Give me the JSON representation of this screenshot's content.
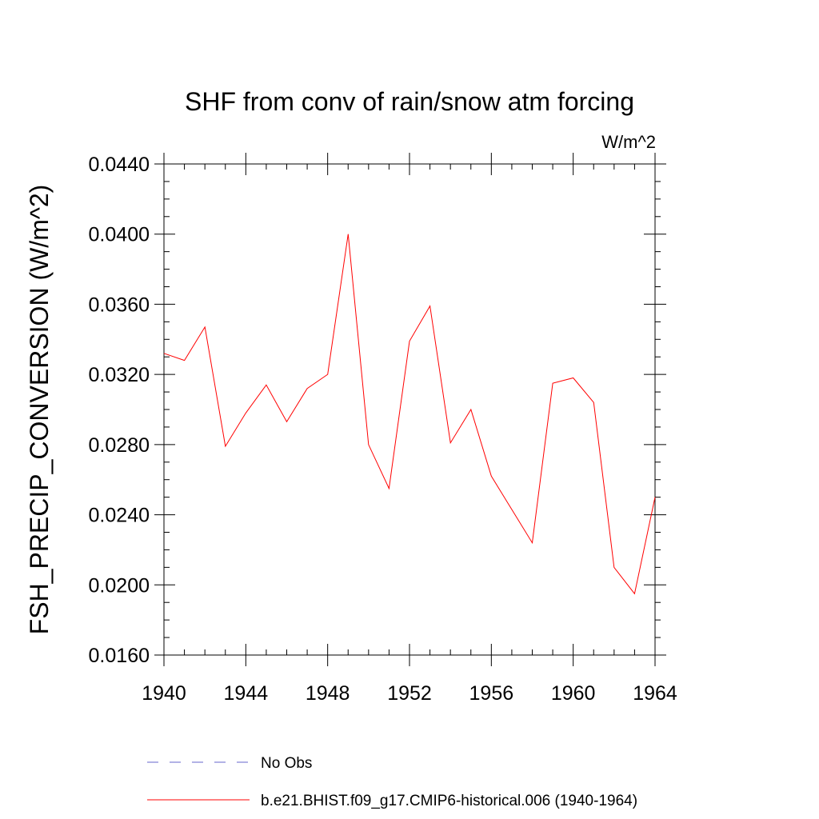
{
  "chart_data": {
    "type": "line",
    "title": "SHF from conv of rain/snow atm forcing",
    "units_label": "W/m^2",
    "ylabel": "FSH_PRECIP_CONVERSION  (W/m^2)",
    "xlabel": "",
    "xlim": [
      1940,
      1964
    ],
    "ylim": [
      0.016,
      0.044
    ],
    "x_ticks": [
      1940,
      1944,
      1948,
      1952,
      1956,
      1960,
      1964
    ],
    "x_tick_labels": [
      "1940",
      "1944",
      "1948",
      "1952",
      "1956",
      "1960",
      "1964"
    ],
    "y_ticks": [
      0.016,
      0.02,
      0.024,
      0.028,
      0.032,
      0.036,
      0.04,
      0.044
    ],
    "y_tick_labels": [
      "0.0160",
      "0.0200",
      "0.0240",
      "0.0280",
      "0.0320",
      "0.0360",
      "0.0400",
      "0.0440"
    ],
    "grid": false,
    "legend_position": "bottom",
    "series": [
      {
        "name": "b.e21.BHIST.f09_g17.CMIP6-historical.006 (1940-1964)",
        "color": "#ff0000",
        "style": "solid",
        "x": [
          1940,
          1941,
          1942,
          1943,
          1944,
          1945,
          1946,
          1947,
          1948,
          1949,
          1950,
          1951,
          1952,
          1953,
          1954,
          1955,
          1956,
          1957,
          1958,
          1959,
          1960,
          1961,
          1962,
          1963,
          1964
        ],
        "values": [
          0.0332,
          0.0328,
          0.0347,
          0.0279,
          0.0298,
          0.0314,
          0.0293,
          0.0312,
          0.032,
          0.04,
          0.028,
          0.0255,
          0.0339,
          0.0359,
          0.0281,
          0.03,
          0.0262,
          0.0243,
          0.0224,
          0.0315,
          0.0318,
          0.0304,
          0.021,
          0.0195,
          0.025
        ]
      }
    ],
    "legend": [
      {
        "label": "No Obs",
        "color": "#6666cc",
        "style": "dashed"
      },
      {
        "label": "b.e21.BHIST.f09_g17.CMIP6-historical.006 (1940-1964)",
        "color": "#ff0000",
        "style": "solid"
      }
    ]
  }
}
